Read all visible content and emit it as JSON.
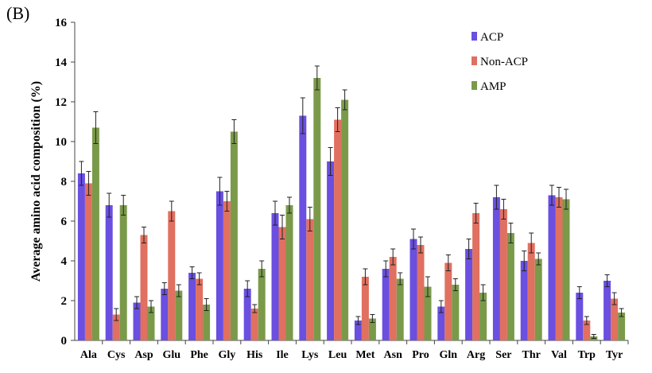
{
  "panel_label": "(B)",
  "chart_data": {
    "type": "bar",
    "title": "",
    "xlabel": "",
    "ylabel": "Average amino acid composition (%)",
    "ylim": [
      0,
      16
    ],
    "yticks": [
      "0",
      "2",
      "4",
      "6",
      "8",
      "10",
      "12",
      "14",
      "16"
    ],
    "grid": false,
    "legend_position": "top-right",
    "categories": [
      "Ala",
      "Cys",
      "Asp",
      "Glu",
      "Phe",
      "Gly",
      "His",
      "Ile",
      "Lys",
      "Leu",
      "Met",
      "Asn",
      "Pro",
      "Gln",
      "Arg",
      "Ser",
      "Thr",
      "Val",
      "Trp",
      "Tyr"
    ],
    "series": [
      {
        "name": "ACP",
        "color": "#6a4fe0",
        "values": [
          8.4,
          6.8,
          1.9,
          2.6,
          3.4,
          7.5,
          2.6,
          6.4,
          11.3,
          9.0,
          1.0,
          3.6,
          5.1,
          1.7,
          4.6,
          7.2,
          4.0,
          7.3,
          2.4,
          3.0
        ],
        "errors": [
          0.6,
          0.6,
          0.3,
          0.3,
          0.3,
          0.7,
          0.4,
          0.6,
          0.9,
          0.7,
          0.2,
          0.4,
          0.5,
          0.3,
          0.5,
          0.6,
          0.5,
          0.5,
          0.3,
          0.3
        ]
      },
      {
        "name": "Non-ACP",
        "color": "#e07060",
        "values": [
          7.9,
          1.3,
          5.3,
          6.5,
          3.1,
          7.0,
          1.6,
          5.7,
          6.1,
          11.1,
          3.2,
          4.2,
          4.8,
          3.9,
          6.4,
          6.6,
          4.9,
          7.2,
          1.0,
          2.1
        ],
        "errors": [
          0.6,
          0.3,
          0.4,
          0.5,
          0.3,
          0.5,
          0.2,
          0.6,
          0.6,
          0.6,
          0.4,
          0.4,
          0.4,
          0.4,
          0.5,
          0.5,
          0.5,
          0.5,
          0.2,
          0.3
        ]
      },
      {
        "name": "AMP",
        "color": "#7a9a4a",
        "values": [
          10.7,
          6.8,
          1.7,
          2.5,
          1.8,
          10.5,
          3.6,
          6.8,
          13.2,
          12.1,
          1.1,
          3.1,
          2.7,
          2.8,
          2.4,
          5.4,
          4.1,
          7.1,
          0.2,
          1.4
        ],
        "errors": [
          0.8,
          0.5,
          0.3,
          0.3,
          0.3,
          0.6,
          0.4,
          0.4,
          0.6,
          0.5,
          0.2,
          0.3,
          0.5,
          0.3,
          0.4,
          0.5,
          0.3,
          0.5,
          0.1,
          0.2
        ]
      }
    ]
  }
}
